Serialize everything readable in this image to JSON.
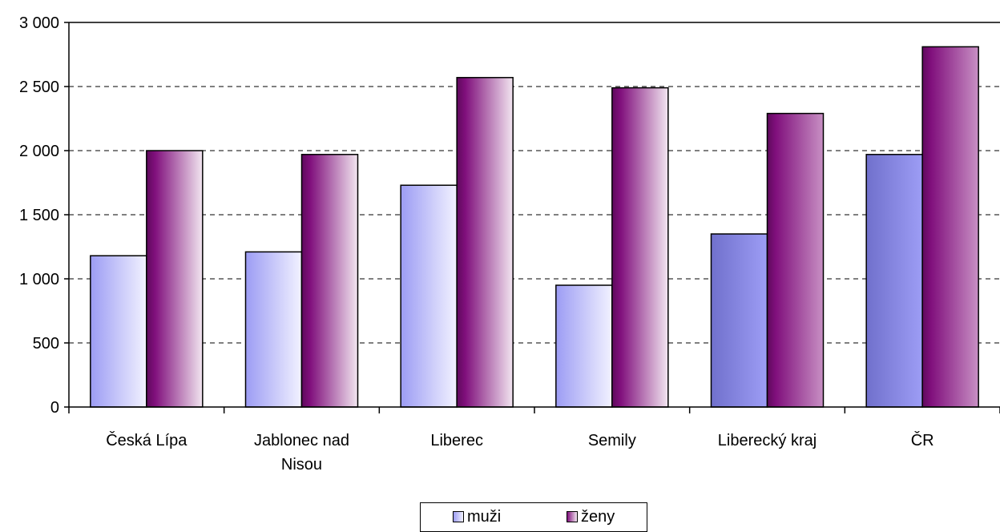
{
  "chart_data": {
    "type": "bar",
    "categories": [
      "Česká Lípa",
      "Jablonec nad Nisou",
      "Liberec",
      "Semily",
      "Liberecký kraj",
      "ČR"
    ],
    "category_lines": [
      [
        "Česká Lípa"
      ],
      [
        "Jablonec nad",
        "Nisou"
      ],
      [
        "Liberec"
      ],
      [
        "Semily"
      ],
      [
        "Liberecký kraj"
      ],
      [
        "ČR"
      ]
    ],
    "series": [
      {
        "name": "muži",
        "values": [
          1180,
          1210,
          1730,
          950,
          1350,
          1970
        ]
      },
      {
        "name": "ženy",
        "values": [
          2000,
          1970,
          2570,
          2490,
          2290,
          2810
        ]
      }
    ],
    "ylim": [
      0,
      3000
    ],
    "yticks": [
      0,
      500,
      1000,
      1500,
      2000,
      2500,
      3000
    ],
    "ytick_labels": [
      "0",
      "500",
      "1 000",
      "1 500",
      "2 000",
      "2 500",
      "3 000"
    ],
    "grid": true,
    "legend_position": "bottom"
  }
}
